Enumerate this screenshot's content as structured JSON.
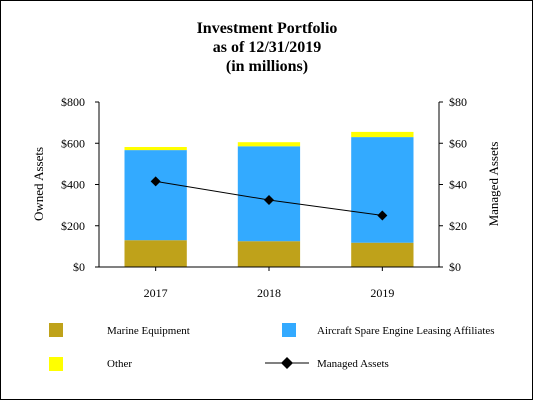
{
  "chart_data": {
    "type": "bar",
    "title": [
      "Investment Portfolio",
      "as of 12/31/2019",
      "(in millions)"
    ],
    "categories": [
      "2017",
      "2018",
      "2019"
    ],
    "stacked": true,
    "series": [
      {
        "name": "Marine Equipment",
        "values": [
          130,
          125,
          118
        ],
        "color": "#bfa21a",
        "axis": "left"
      },
      {
        "name": "Aircraft Spare Engine Leasing Affiliates",
        "values": [
          437,
          460,
          512
        ],
        "color": "#33aaff",
        "axis": "left"
      },
      {
        "name": "Other",
        "values": [
          15,
          20,
          25
        ],
        "color": "#ffff00",
        "axis": "left"
      }
    ],
    "line_series": {
      "name": "Managed Assets",
      "values": [
        41.5,
        32.5,
        25
      ],
      "color": "#000000",
      "marker": "diamond",
      "axis": "right"
    },
    "ylabel_left": "Owned Assets",
    "ylabel_right": "Managed Assets",
    "ylim_left": [
      0,
      800
    ],
    "ylim_right": [
      0,
      80
    ],
    "yticks_left": [
      "$0",
      "$200",
      "$400",
      "$600",
      "$800"
    ],
    "yticks_right": [
      "$0",
      "$20",
      "$40",
      "$60",
      "$80"
    ],
    "grid": false,
    "legend_position": "bottom"
  }
}
